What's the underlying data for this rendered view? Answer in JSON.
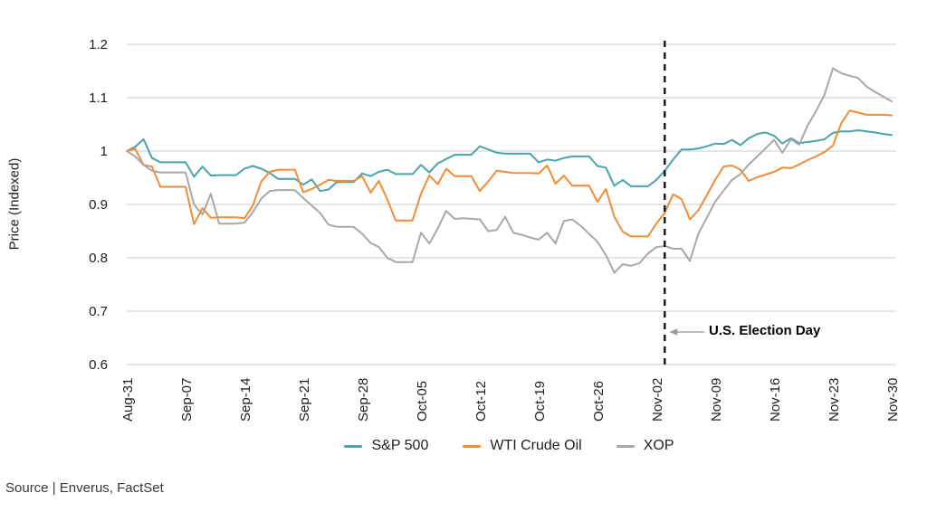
{
  "y_axis": {
    "label": "Price (Indexed)",
    "ticks": [
      {
        "value": 1.2,
        "label": "1.2"
      },
      {
        "value": 1.1,
        "label": "1.1"
      },
      {
        "value": 1.0,
        "label": "1"
      },
      {
        "value": 0.9,
        "label": "0.9"
      },
      {
        "value": 0.8,
        "label": "0.8"
      },
      {
        "value": 0.7,
        "label": "0.7"
      },
      {
        "value": 0.6,
        "label": "0.6"
      }
    ]
  },
  "x_axis": {
    "ticks": [
      {
        "label": "Aug-31",
        "day_index": 0
      },
      {
        "label": "Sep-07",
        "day_index": 7
      },
      {
        "label": "Sep-14",
        "day_index": 14
      },
      {
        "label": "Sep-21",
        "day_index": 21
      },
      {
        "label": "Sep-28",
        "day_index": 28
      },
      {
        "label": "Oct-05",
        "day_index": 35
      },
      {
        "label": "Oct-12",
        "day_index": 42
      },
      {
        "label": "Oct-19",
        "day_index": 49
      },
      {
        "label": "Oct-26",
        "day_index": 56
      },
      {
        "label": "Nov-02",
        "day_index": 63
      },
      {
        "label": "Nov-09",
        "day_index": 70
      },
      {
        "label": "Nov-16",
        "day_index": 77
      },
      {
        "label": "Nov-23",
        "day_index": 84
      },
      {
        "label": "Nov-30",
        "day_index": 91
      }
    ]
  },
  "legend": {
    "items": [
      {
        "label": "S&P 500",
        "color": "#4ba3ab"
      },
      {
        "label": "WTI Crude Oil",
        "color": "#f28c36"
      },
      {
        "label": "XOP",
        "color": "#a8a8a8"
      }
    ]
  },
  "annotation": {
    "text": "U.S. Election Day",
    "day_index": 64
  },
  "source": {
    "text": "Source | Enverus, FactSet"
  },
  "colors": {
    "gridline": "#cccccc",
    "dashed_line": "#1a1a1a",
    "arrow": "#999999",
    "tick_text": "#212121"
  },
  "chart_data": {
    "type": "line",
    "title": "",
    "xlabel": "",
    "ylabel": "Price (Indexed)",
    "ylim": [
      0.6,
      1.2
    ],
    "grid": "horizontal",
    "legend_position": "bottom",
    "annotation_text": "U.S. Election Day",
    "x": [
      "Aug-31",
      "Sep-01",
      "Sep-02",
      "Sep-03",
      "Sep-04",
      "Sep-05",
      "Sep-06",
      "Sep-07",
      "Sep-08",
      "Sep-09",
      "Sep-10",
      "Sep-11",
      "Sep-12",
      "Sep-13",
      "Sep-14",
      "Sep-15",
      "Sep-16",
      "Sep-17",
      "Sep-18",
      "Sep-19",
      "Sep-20",
      "Sep-21",
      "Sep-22",
      "Sep-23",
      "Sep-24",
      "Sep-25",
      "Sep-26",
      "Sep-27",
      "Sep-28",
      "Sep-29",
      "Sep-30",
      "Oct-01",
      "Oct-02",
      "Oct-03",
      "Oct-04",
      "Oct-05",
      "Oct-06",
      "Oct-07",
      "Oct-08",
      "Oct-09",
      "Oct-10",
      "Oct-11",
      "Oct-12",
      "Oct-13",
      "Oct-14",
      "Oct-15",
      "Oct-16",
      "Oct-17",
      "Oct-18",
      "Oct-19",
      "Oct-20",
      "Oct-21",
      "Oct-22",
      "Oct-23",
      "Oct-24",
      "Oct-25",
      "Oct-26",
      "Oct-27",
      "Oct-28",
      "Oct-29",
      "Oct-30",
      "Oct-31",
      "Nov-01",
      "Nov-02",
      "Nov-03",
      "Nov-04",
      "Nov-05",
      "Nov-06",
      "Nov-07",
      "Nov-08",
      "Nov-09",
      "Nov-10",
      "Nov-11",
      "Nov-12",
      "Nov-13",
      "Nov-14",
      "Nov-15",
      "Nov-16",
      "Nov-17",
      "Nov-18",
      "Nov-19",
      "Nov-20",
      "Nov-21",
      "Nov-22",
      "Nov-23",
      "Nov-24",
      "Nov-25",
      "Nov-26",
      "Nov-27",
      "Nov-28",
      "Nov-29",
      "Nov-30"
    ],
    "series": [
      {
        "name": "S&P 500",
        "color": "#4ba3ab",
        "values": [
          1.0,
          1.008,
          1.022,
          0.987,
          0.979,
          0.979,
          0.979,
          0.979,
          0.952,
          0.971,
          0.954,
          0.955,
          0.955,
          0.955,
          0.967,
          0.972,
          0.967,
          0.959,
          0.948,
          0.948,
          0.948,
          0.937,
          0.947,
          0.925,
          0.928,
          0.942,
          0.942,
          0.942,
          0.958,
          0.953,
          0.961,
          0.965,
          0.957,
          0.957,
          0.957,
          0.974,
          0.96,
          0.977,
          0.985,
          0.993,
          0.993,
          0.993,
          1.009,
          1.003,
          0.997,
          0.995,
          0.995,
          0.995,
          0.995,
          0.979,
          0.984,
          0.982,
          0.987,
          0.99,
          0.99,
          0.99,
          0.972,
          0.969,
          0.935,
          0.946,
          0.934,
          0.934,
          0.934,
          0.946,
          0.963,
          0.984,
          1.003,
          1.003,
          1.005,
          1.009,
          1.014,
          1.013,
          1.021,
          1.011,
          1.024,
          1.032,
          1.035,
          1.029,
          1.014,
          1.024,
          1.015,
          1.017,
          1.019,
          1.022,
          1.034,
          1.037,
          1.037,
          1.039,
          1.037,
          1.035,
          1.032,
          1.03
        ]
      },
      {
        "name": "WTI Crude Oil",
        "color": "#f28c36",
        "values": [
          1.0,
          1.004,
          0.974,
          0.971,
          0.933,
          0.933,
          0.933,
          0.933,
          0.863,
          0.893,
          0.875,
          0.876,
          0.876,
          0.876,
          0.874,
          0.898,
          0.943,
          0.961,
          0.965,
          0.965,
          0.965,
          0.923,
          0.929,
          0.937,
          0.946,
          0.944,
          0.944,
          0.944,
          0.953,
          0.922,
          0.944,
          0.909,
          0.87,
          0.87,
          0.87,
          0.92,
          0.954,
          0.938,
          0.967,
          0.953,
          0.953,
          0.953,
          0.925,
          0.943,
          0.963,
          0.961,
          0.959,
          0.959,
          0.959,
          0.958,
          0.973,
          0.939,
          0.954,
          0.935,
          0.935,
          0.935,
          0.905,
          0.929,
          0.877,
          0.849,
          0.84,
          0.84,
          0.84,
          0.864,
          0.884,
          0.919,
          0.91,
          0.872,
          0.889,
          0.917,
          0.946,
          0.971,
          0.973,
          0.965,
          0.944,
          0.951,
          0.956,
          0.961,
          0.969,
          0.968,
          0.975,
          0.983,
          0.99,
          0.998,
          1.01,
          1.052,
          1.076,
          1.072,
          1.068,
          1.068,
          1.068,
          1.067
        ]
      },
      {
        "name": "XOP",
        "color": "#a8a8a8",
        "values": [
          1.0,
          0.99,
          0.974,
          0.963,
          0.96,
          0.96,
          0.96,
          0.96,
          0.9,
          0.881,
          0.92,
          0.864,
          0.864,
          0.864,
          0.866,
          0.885,
          0.911,
          0.925,
          0.927,
          0.927,
          0.927,
          0.912,
          0.898,
          0.884,
          0.862,
          0.858,
          0.858,
          0.858,
          0.845,
          0.828,
          0.82,
          0.8,
          0.792,
          0.792,
          0.792,
          0.847,
          0.827,
          0.855,
          0.888,
          0.873,
          0.874,
          0.873,
          0.872,
          0.85,
          0.852,
          0.877,
          0.847,
          0.843,
          0.838,
          0.834,
          0.847,
          0.827,
          0.869,
          0.872,
          0.86,
          0.845,
          0.83,
          0.805,
          0.772,
          0.788,
          0.785,
          0.79,
          0.808,
          0.82,
          0.822,
          0.817,
          0.817,
          0.794,
          0.845,
          0.875,
          0.905,
          0.926,
          0.946,
          0.957,
          0.975,
          0.99,
          1.005,
          1.021,
          0.997,
          1.022,
          1.012,
          1.048,
          1.075,
          1.105,
          1.155,
          1.146,
          1.141,
          1.137,
          1.121,
          1.111,
          1.102,
          1.093
        ]
      }
    ]
  }
}
